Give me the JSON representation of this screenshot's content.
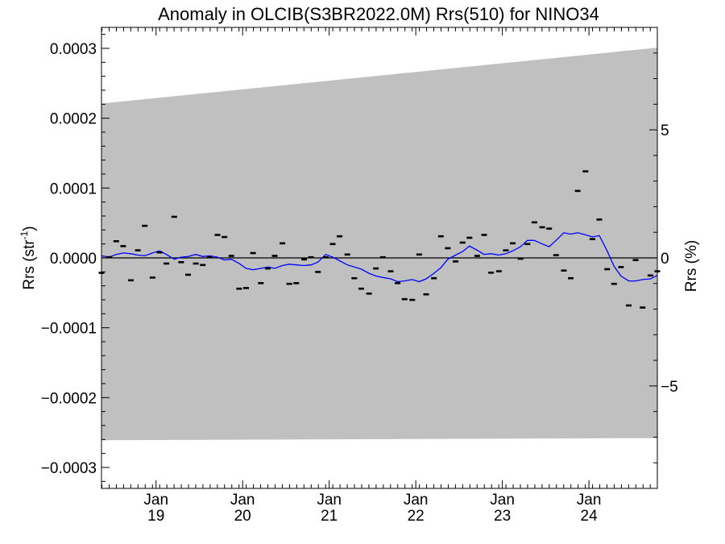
{
  "chart_data": {
    "type": "scatter",
    "title": "Anomaly in OLCIB(S3BR2022.0M) Rrs(510) for NINO34",
    "ylabel_left": {
      "base": "Rrs (str",
      "sup": "-1",
      "close": ")"
    },
    "ylabel_right": "Rrs (%)",
    "xlim": [
      2018.37,
      2024.79
    ],
    "ylim": [
      -0.00033,
      0.00033
    ],
    "ylim_right": [
      -9.0,
      9.0
    ],
    "left_ticks": [
      {
        "value": 0.0003,
        "label": "0.0003"
      },
      {
        "value": 0.0002,
        "label": "0.0002"
      },
      {
        "value": 0.0001,
        "label": "0.0001"
      },
      {
        "value": 0.0,
        "label": "0.0000"
      },
      {
        "value": -0.0001,
        "label": "−0.0001"
      },
      {
        "value": -0.0002,
        "label": "−0.0002"
      },
      {
        "value": -0.0003,
        "label": "−0.0003"
      }
    ],
    "right_ticks": [
      {
        "value": 5,
        "label": "5"
      },
      {
        "value": 0,
        "label": "0"
      },
      {
        "value": -5,
        "label": "−5"
      }
    ],
    "x_ticks": [
      {
        "value": 2019.0,
        "month": "Jan",
        "year": "19"
      },
      {
        "value": 2020.0,
        "month": "Jan",
        "year": "20"
      },
      {
        "value": 2021.0,
        "month": "Jan",
        "year": "21"
      },
      {
        "value": 2022.0,
        "month": "Jan",
        "year": "22"
      },
      {
        "value": 2023.0,
        "month": "Jan",
        "year": "23"
      },
      {
        "value": 2024.0,
        "month": "Jan",
        "year": "24"
      }
    ],
    "uncertainty_band": {
      "x": [
        2018.37,
        2024.79
      ],
      "upper": [
        0.000221,
        0.000301
      ],
      "lower": [
        -0.000261,
        -0.000258
      ]
    },
    "series": [
      {
        "values": [
          [
            2018.37,
            -2.12e-05
          ],
          [
            2018.46,
            1.2e-06
          ],
          [
            2018.54,
            2.4e-05
          ],
          [
            2018.62,
            1.7e-05
          ],
          [
            2018.71,
            -3.2e-05
          ],
          [
            2018.79,
            1.1e-05
          ],
          [
            2018.87,
            4.6e-05
          ],
          [
            2018.96,
            -2.8e-05
          ],
          [
            2019.04,
            8e-06
          ],
          [
            2019.12,
            -8e-06
          ],
          [
            2019.21,
            5.9e-05
          ],
          [
            2019.29,
            -6e-06
          ],
          [
            2019.37,
            -2.4e-05
          ],
          [
            2019.46,
            -8e-06
          ],
          [
            2019.54,
            -1e-05
          ],
          [
            2019.62,
            1e-06
          ],
          [
            2019.71,
            3.3e-05
          ],
          [
            2019.79,
            3e-05
          ],
          [
            2019.87,
            3e-06
          ],
          [
            2019.96,
            -4.4e-05
          ],
          [
            2020.04,
            -4.3e-05
          ],
          [
            2020.12,
            7e-06
          ],
          [
            2020.21,
            -3.6e-05
          ],
          [
            2020.29,
            -1.5e-05
          ],
          [
            2020.37,
            3e-06
          ],
          [
            2020.46,
            2.1e-05
          ],
          [
            2020.54,
            -3.7e-05
          ],
          [
            2020.62,
            -3.6e-05
          ],
          [
            2020.71,
            -2e-06
          ],
          [
            2020.79,
            1e-06
          ],
          [
            2020.87,
            -2e-05
          ],
          [
            2020.96,
            1e-06
          ],
          [
            2021.04,
            2e-05
          ],
          [
            2021.12,
            3.1e-05
          ],
          [
            2021.21,
            5e-06
          ],
          [
            2021.29,
            -2.9e-05
          ],
          [
            2021.37,
            -4.4e-05
          ],
          [
            2021.46,
            -5.1e-05
          ],
          [
            2021.54,
            -1.5e-05
          ],
          [
            2021.62,
            1e-06
          ],
          [
            2021.71,
            -1.9e-05
          ],
          [
            2021.79,
            -3.6e-05
          ],
          [
            2021.87,
            -5.9e-05
          ],
          [
            2021.96,
            -6e-05
          ],
          [
            2022.04,
            5e-06
          ],
          [
            2022.12,
            -5.2e-05
          ],
          [
            2022.21,
            -2.9e-05
          ],
          [
            2022.29,
            3.1e-05
          ],
          [
            2022.37,
            1.4e-05
          ],
          [
            2022.46,
            -5e-06
          ],
          [
            2022.54,
            2.2e-05
          ],
          [
            2022.62,
            2.9e-05
          ],
          [
            2022.71,
            3e-06
          ],
          [
            2022.79,
            3.3e-05
          ],
          [
            2022.87,
            -2.1e-05
          ],
          [
            2022.96,
            -1.9e-05
          ],
          [
            2023.04,
            1.1e-05
          ],
          [
            2023.12,
            2.1e-05
          ],
          [
            2023.21,
            -1e-06
          ],
          [
            2023.29,
            2e-05
          ],
          [
            2023.37,
            5.1e-05
          ],
          [
            2023.46,
            4.4e-05
          ],
          [
            2023.54,
            4.2e-05
          ],
          [
            2023.62,
            4e-06
          ],
          [
            2023.71,
            -1.8e-05
          ],
          [
            2023.79,
            -2.9e-05
          ],
          [
            2023.87,
            9.6e-05
          ],
          [
            2023.96,
            0.000124
          ],
          [
            2024.04,
            2.7e-05
          ],
          [
            2024.12,
            5.5e-05
          ],
          [
            2024.21,
            -1.6e-05
          ],
          [
            2024.29,
            -3.7e-05
          ],
          [
            2024.37,
            -1.3e-05
          ],
          [
            2024.46,
            -6.8e-05
          ],
          [
            2024.54,
            -3e-06
          ],
          [
            2024.62,
            -7.1e-05
          ],
          [
            2024.71,
            -2.5e-05
          ],
          [
            2024.79,
            -1.9e-05
          ]
        ]
      },
      {
        "values": [
          [
            2018.37,
            3e-06
          ],
          [
            2018.46,
            1e-06
          ],
          [
            2018.54,
            5e-06
          ],
          [
            2018.62,
            7e-06
          ],
          [
            2018.71,
            6e-06
          ],
          [
            2018.79,
            4e-06
          ],
          [
            2018.87,
            3e-06
          ],
          [
            2018.96,
            7e-06
          ],
          [
            2019.04,
            1e-05
          ],
          [
            2019.12,
            5e-06
          ],
          [
            2019.21,
            -2e-06
          ],
          [
            2019.29,
            1e-06
          ],
          [
            2019.37,
            2e-06
          ],
          [
            2019.46,
            5e-06
          ],
          [
            2019.54,
            2e-06
          ],
          [
            2019.62,
            3e-06
          ],
          [
            2019.71,
            1e-06
          ],
          [
            2019.79,
            -3e-06
          ],
          [
            2019.87,
            -2e-06
          ],
          [
            2019.96,
            -8e-06
          ],
          [
            2020.04,
            -1.5e-05
          ],
          [
            2020.12,
            -1.7e-05
          ],
          [
            2020.21,
            -1.5e-05
          ],
          [
            2020.29,
            -1.3e-05
          ],
          [
            2020.37,
            -1.5e-05
          ],
          [
            2020.46,
            -1.1e-05
          ],
          [
            2020.54,
            -9e-06
          ],
          [
            2020.62,
            -1e-05
          ],
          [
            2020.71,
            -1.1e-05
          ],
          [
            2020.79,
            -1e-05
          ],
          [
            2020.87,
            -6e-06
          ],
          [
            2020.96,
            5e-06
          ],
          [
            2021.04,
            1e-06
          ],
          [
            2021.12,
            -4e-06
          ],
          [
            2021.21,
            -1e-05
          ],
          [
            2021.29,
            -1.3e-05
          ],
          [
            2021.37,
            -1.6e-05
          ],
          [
            2021.46,
            -2.2e-05
          ],
          [
            2021.54,
            -2.6e-05
          ],
          [
            2021.62,
            -2.8e-05
          ],
          [
            2021.71,
            -3e-05
          ],
          [
            2021.79,
            -3.4e-05
          ],
          [
            2021.87,
            -3.3e-05
          ],
          [
            2021.96,
            -3.1e-05
          ],
          [
            2022.04,
            -3.4e-05
          ],
          [
            2022.12,
            -3e-05
          ],
          [
            2022.21,
            -2.2e-05
          ],
          [
            2022.29,
            -1.4e-05
          ],
          [
            2022.37,
            -2e-06
          ],
          [
            2022.46,
            4e-06
          ],
          [
            2022.54,
            9e-06
          ],
          [
            2022.62,
            1.7e-05
          ],
          [
            2022.71,
            1.1e-05
          ],
          [
            2022.79,
            5e-06
          ],
          [
            2022.87,
            6e-06
          ],
          [
            2022.96,
            4e-06
          ],
          [
            2023.04,
            6e-06
          ],
          [
            2023.12,
            1e-05
          ],
          [
            2023.21,
            1.6e-05
          ],
          [
            2023.29,
            2.5e-05
          ],
          [
            2023.37,
            2.5e-05
          ],
          [
            2023.46,
            2e-05
          ],
          [
            2023.54,
            1.6e-05
          ],
          [
            2023.62,
            2.5e-05
          ],
          [
            2023.71,
            3.6e-05
          ],
          [
            2023.79,
            3.4e-05
          ],
          [
            2023.87,
            3.6e-05
          ],
          [
            2023.96,
            3.3e-05
          ],
          [
            2024.04,
            3e-05
          ],
          [
            2024.12,
            3.2e-05
          ],
          [
            2024.21,
            1e-05
          ],
          [
            2024.29,
            -1.2e-05
          ],
          [
            2024.37,
            -2.6e-05
          ],
          [
            2024.46,
            -3.3e-05
          ],
          [
            2024.54,
            -3.3e-05
          ],
          [
            2024.62,
            -3.1e-05
          ],
          [
            2024.71,
            -3e-05
          ],
          [
            2024.79,
            -2.5e-05
          ]
        ]
      }
    ],
    "colors": {
      "band": "#c0c0c0",
      "points": "#000000",
      "smooth_line": "#0000ff",
      "zero_line": "#000000",
      "axes": "#000000"
    },
    "grid": false
  }
}
